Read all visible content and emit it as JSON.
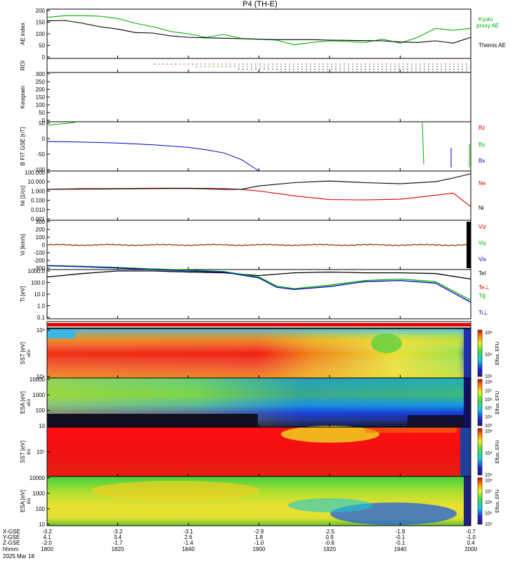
{
  "title": "P4 (TH-E)",
  "colors": {
    "black": "#000000",
    "green": "#00b000",
    "red": "#dd0000",
    "blue": "#0000cc"
  },
  "chart_data": [
    {
      "type": "line",
      "panel": "ae",
      "ylabel": "AE index",
      "ylim": [
        -10,
        200
      ],
      "yticks": [
        "200",
        "150",
        "100",
        "50",
        "0"
      ],
      "series": [
        {
          "name": "Kyoto proxy AE",
          "color": "green",
          "x": [
            "18:00",
            "18:05",
            "18:10",
            "18:15",
            "18:20",
            "18:25",
            "18:30",
            "18:35",
            "18:40",
            "18:45",
            "18:50",
            "18:55",
            "19:00",
            "19:05",
            "19:10",
            "19:15",
            "19:20",
            "19:25",
            "19:30",
            "19:35",
            "19:40",
            "19:45",
            "19:50",
            "19:55",
            "20:00"
          ],
          "values": [
            165,
            172,
            172,
            170,
            160,
            140,
            125,
            105,
            95,
            80,
            92,
            75,
            72,
            68,
            48,
            58,
            65,
            62,
            58,
            72,
            55,
            80,
            118,
            110,
            118
          ]
        },
        {
          "name": "Themis AE",
          "color": "black",
          "x": [
            "18:00",
            "18:05",
            "18:10",
            "18:15",
            "18:20",
            "18:25",
            "18:30",
            "18:35",
            "18:40",
            "18:45",
            "18:50",
            "18:55",
            "19:00",
            "19:05",
            "19:10",
            "19:15",
            "19:20",
            "19:25",
            "19:30",
            "19:35",
            "19:40",
            "19:45",
            "19:50",
            "19:55",
            "20:00"
          ],
          "values": [
            150,
            152,
            140,
            125,
            115,
            100,
            98,
            86,
            80,
            78,
            76,
            74,
            72,
            70,
            70,
            70,
            68,
            67,
            66,
            65,
            60,
            58,
            65,
            55,
            80
          ]
        }
      ],
      "legend": [
        {
          "label": "Kyoto",
          "color": "green"
        },
        {
          "label": "proxy AE",
          "color": "green"
        },
        {
          "label": "Themis AE",
          "color": "black"
        }
      ]
    },
    {
      "type": "scatter",
      "panel": "roi",
      "ylabel": "ROI",
      "note": "dotted bands starting near 18:20"
    },
    {
      "type": "heatmap",
      "panel": "keogram",
      "ylabel": "Keogram",
      "ylim": [
        0,
        300
      ],
      "yticks": [
        "300",
        "250",
        "200",
        "150",
        "100",
        "50",
        "0"
      ]
    },
    {
      "type": "line",
      "panel": "bfield",
      "ylabel": "B FIT GSE [nT]",
      "ylim": [
        -100,
        50
      ],
      "yticks": [
        "50",
        "0",
        "-50",
        "-100"
      ],
      "series": [
        {
          "name": "Bx",
          "color": "blue",
          "x": [
            "18:00",
            "18:10",
            "18:20",
            "18:30",
            "18:40",
            "18:45",
            "18:50",
            "18:55",
            "19:00"
          ],
          "values": [
            -10,
            -12,
            -15,
            -20,
            -28,
            -35,
            -45,
            -65,
            -100
          ]
        }
      ],
      "legend": [
        {
          "label": "Bz",
          "color": "red"
        },
        {
          "label": "By",
          "color": "green"
        },
        {
          "label": "Bx",
          "color": "blue"
        }
      ]
    },
    {
      "type": "line",
      "panel": "density",
      "ylabel": "Ni [1/cc]",
      "scale": "log",
      "yticks": [
        "100.000",
        "10.000",
        "1.000",
        "0.100",
        "0.010",
        "0.001"
      ],
      "series": [
        {
          "name": "Ne",
          "color": "red",
          "x": [
            "18:00",
            "18:10",
            "18:20",
            "18:30",
            "18:40",
            "18:50",
            "18:55",
            "19:00",
            "19:10",
            "19:20",
            "19:30",
            "19:40",
            "19:50",
            "19:55",
            "20:00"
          ],
          "values": [
            1.5,
            1.8,
            1.8,
            2.0,
            2.0,
            1.8,
            1.5,
            1.0,
            0.3,
            0.12,
            0.11,
            0.13,
            0.35,
            0.6,
            0.02
          ]
        },
        {
          "name": "Ni",
          "color": "black",
          "x": [
            "18:00",
            "18:10",
            "18:20",
            "18:30",
            "18:40",
            "18:50",
            "18:55",
            "19:00",
            "19:10",
            "19:20",
            "19:30",
            "19:40",
            "19:50",
            "19:55",
            "20:00"
          ],
          "values": [
            1.5,
            1.6,
            1.7,
            1.8,
            1.9,
            1.5,
            1.5,
            3.5,
            8,
            12,
            8,
            6,
            10,
            25,
            70
          ]
        }
      ],
      "legend": [
        {
          "label": "Ne",
          "color": "red"
        },
        {
          "label": "Ni",
          "color": "black"
        }
      ]
    },
    {
      "type": "line",
      "panel": "velocity",
      "ylabel": "Vi [km/s]",
      "ylim": [
        -300,
        300
      ],
      "yticks": [
        "300",
        "200",
        "100",
        "0",
        "-100",
        "-200",
        "-300"
      ],
      "legend": [
        {
          "label": "Viz",
          "color": "red"
        },
        {
          "label": "Viy",
          "color": "green"
        },
        {
          "label": "Vix",
          "color": "blue"
        }
      ]
    },
    {
      "type": "line",
      "panel": "temperature",
      "ylabel": "Ti [eV]",
      "scale": "log",
      "yticks": [
        "1000.0",
        "100.0",
        "10.0",
        "1.0",
        "0.1"
      ],
      "series": [
        {
          "name": "Te",
          "color": "black",
          "x": [
            "18:00",
            "18:10",
            "18:20",
            "18:30",
            "18:40",
            "18:50",
            "19:00",
            "19:10",
            "19:20",
            "19:30",
            "19:40",
            "19:50",
            "20:00"
          ],
          "values": [
            300,
            600,
            1000,
            1000,
            800,
            700,
            400,
            700,
            800,
            700,
            700,
            600,
            200
          ]
        },
        {
          "name": "Ti∥",
          "color": "green",
          "x": [
            "18:00",
            "18:10",
            "18:20",
            "18:30",
            "18:40",
            "18:50",
            "19:00",
            "19:05",
            "19:10",
            "19:20",
            "19:30",
            "19:40",
            "19:50",
            "20:00"
          ],
          "values": [
            3000,
            2500,
            2000,
            1500,
            1200,
            900,
            300,
            50,
            30,
            60,
            150,
            200,
            120,
            3
          ]
        },
        {
          "name": "Ti⊥",
          "color": "blue",
          "x": [
            "18:00",
            "18:10",
            "18:20",
            "18:30",
            "18:40",
            "18:50",
            "19:00",
            "19:05",
            "19:10",
            "19:20",
            "19:30",
            "19:40",
            "19:50",
            "20:00"
          ],
          "values": [
            2800,
            2300,
            1800,
            1300,
            1000,
            800,
            250,
            40,
            25,
            45,
            120,
            150,
            90,
            2
          ]
        }
      ],
      "legend": [
        {
          "label": "Tel",
          "color": "black"
        },
        {
          "label": "Te⊥",
          "color": "red"
        },
        {
          "label": "Ti∥",
          "color": "green"
        },
        {
          "label": "Ti⊥",
          "color": "blue"
        }
      ]
    },
    {
      "type": "heatmap",
      "panel": "sst_e",
      "ylabel": "SST [eV]",
      "sub": "eEn",
      "yticks": [
        "10⁶",
        "10⁵"
      ],
      "colorbar": {
        "label": "Eflux, EFU",
        "ticks": [
          "10⁸",
          "10⁴",
          "10⁶"
        ]
      }
    },
    {
      "type": "heatmap",
      "panel": "esa_e",
      "ylabel": "ESA [eV]",
      "sub": "eEn",
      "yticks": [
        "10000",
        "1000",
        "100",
        "10"
      ],
      "colorbar": {
        "label": "Eflux, EFU",
        "ticks": [
          "10⁸",
          "10⁷",
          "10⁶",
          "10⁵",
          "10⁴",
          "10³"
        ]
      }
    },
    {
      "type": "heatmap",
      "panel": "sst_i",
      "ylabel": "SST [eV]",
      "sub": "iEn",
      "yticks": [
        "10⁵"
      ],
      "colorbar": {
        "label": "Eflux, EFU",
        "ticks": [
          "10⁸",
          "10⁴",
          "10⁶"
        ]
      }
    },
    {
      "type": "heatmap",
      "panel": "esa_i",
      "ylabel": "ESA [eV]",
      "sub": "iEn",
      "yticks": [
        "10000",
        "1000",
        "100",
        "10"
      ],
      "colorbar": {
        "label": "Eflux, EFU",
        "ticks": [
          "10⁸",
          "10⁷",
          "10⁶",
          "10⁵",
          "10⁴"
        ]
      }
    }
  ],
  "xaxis": {
    "rowlabels": [
      "X-GSE",
      "Y-GSE",
      "Z-GSE",
      "hhmm",
      "2025 Mar 18"
    ],
    "ticks": [
      {
        "x": "-3.2",
        "y": "4.1",
        "z": "-2.0",
        "t": "1800"
      },
      {
        "x": "-3.2",
        "y": "3.4",
        "z": "-1.7",
        "t": "1820"
      },
      {
        "x": "-3.1",
        "y": "2.6",
        "z": "-1.4",
        "t": "1840"
      },
      {
        "x": "-2.9",
        "y": "1.8",
        "z": "-1.0",
        "t": "1900"
      },
      {
        "x": "-2.5",
        "y": "0.9",
        "z": "-0.6",
        "t": "1920"
      },
      {
        "x": "-1.9",
        "y": "-0.1",
        "z": "-0.1",
        "t": "1940"
      },
      {
        "x": "-0.7",
        "y": "-1.0",
        "z": "0.4",
        "t": "2000"
      }
    ]
  }
}
